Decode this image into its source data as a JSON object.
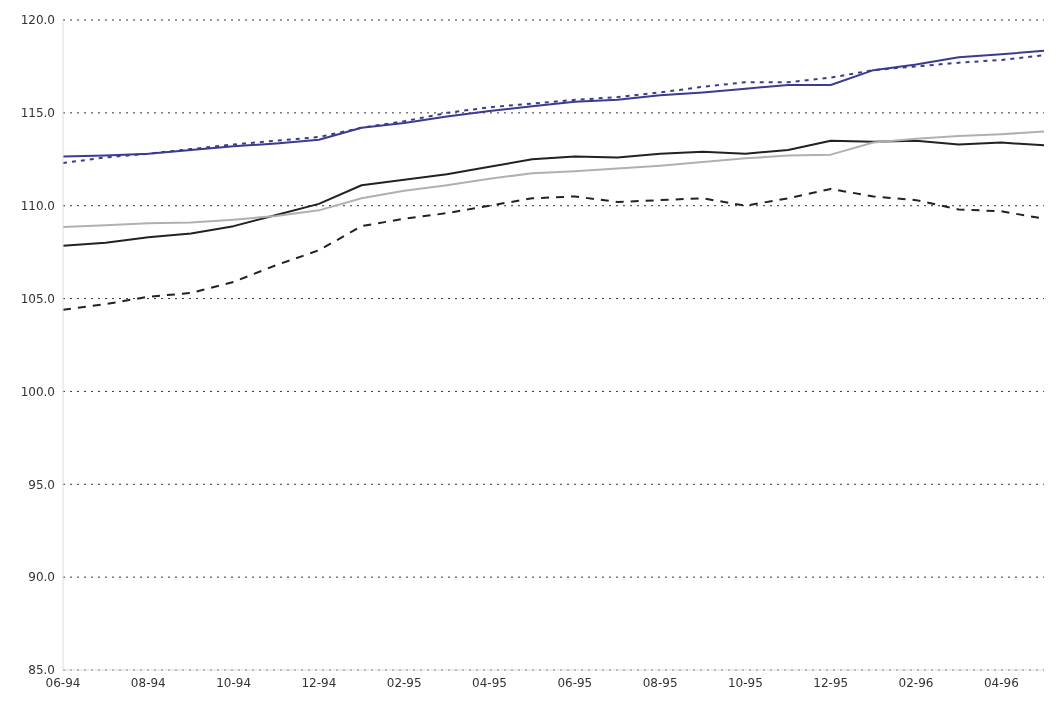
{
  "chart_data": {
    "type": "line",
    "categories": [
      "06-94",
      null,
      "08-94",
      null,
      "10-94",
      null,
      "12-94",
      null,
      "02-95",
      null,
      "04-95",
      null,
      "06-95",
      null,
      "08-95",
      null,
      "10-95",
      null,
      "12-95",
      null,
      "02-96",
      null,
      "04-96",
      null
    ],
    "series": [
      {
        "color": "#3b3b8f",
        "line_style": "solid",
        "values": [
          112.65,
          112.7,
          112.8,
          113.0,
          113.2,
          113.35,
          113.55,
          114.2,
          114.45,
          114.8,
          115.1,
          115.35,
          115.6,
          115.7,
          115.95,
          116.1,
          116.3,
          116.5,
          116.5,
          117.3,
          117.6,
          118.0,
          118.15,
          118.35
        ]
      },
      {
        "color": "#3b3b8f",
        "line_style": "dotted",
        "values": [
          112.3,
          112.6,
          112.8,
          113.05,
          113.3,
          113.5,
          113.7,
          114.2,
          114.55,
          115.0,
          115.3,
          115.5,
          115.7,
          115.85,
          116.1,
          116.4,
          116.65,
          116.65,
          116.9,
          117.3,
          117.5,
          117.7,
          117.85,
          118.1
        ]
      },
      {
        "color": "#222222",
        "line_style": "solid",
        "values": [
          107.85,
          108.0,
          108.3,
          108.5,
          108.9,
          109.5,
          110.1,
          111.1,
          111.4,
          111.7,
          112.1,
          112.5,
          112.65,
          112.6,
          112.8,
          112.9,
          112.8,
          113.0,
          113.5,
          113.45,
          113.5,
          113.3,
          113.4,
          113.25
        ]
      },
      {
        "color": "#b0b0b0",
        "line_style": "solid",
        "values": [
          108.85,
          108.95,
          109.05,
          109.1,
          109.25,
          109.45,
          109.75,
          110.4,
          110.8,
          111.1,
          111.45,
          111.75,
          111.85,
          112.0,
          112.15,
          112.35,
          112.55,
          112.7,
          112.75,
          113.4,
          113.6,
          113.75,
          113.85,
          114.0
        ]
      },
      {
        "color": "#222222",
        "line_style": "dashed",
        "values": [
          104.4,
          104.7,
          105.1,
          105.3,
          105.9,
          106.8,
          107.6,
          108.9,
          109.3,
          109.6,
          110.0,
          110.4,
          110.5,
          110.2,
          110.3,
          110.4,
          110.0,
          110.4,
          110.9,
          110.5,
          110.3,
          109.8,
          109.7,
          109.3
        ]
      }
    ],
    "ylim": [
      85,
      120
    ],
    "yticks": [
      {
        "value": 85,
        "label": "85.0"
      },
      {
        "value": 90,
        "label": "90.0"
      },
      {
        "value": 95,
        "label": "95.0"
      },
      {
        "value": 100,
        "label": "100.0"
      },
      {
        "value": 105,
        "label": "105.0"
      },
      {
        "value": 110,
        "label": "110.0"
      },
      {
        "value": 115,
        "label": "115.0"
      },
      {
        "value": 120,
        "label": "120.0"
      }
    ],
    "grid": "y",
    "legend": false,
    "marker": "none"
  }
}
